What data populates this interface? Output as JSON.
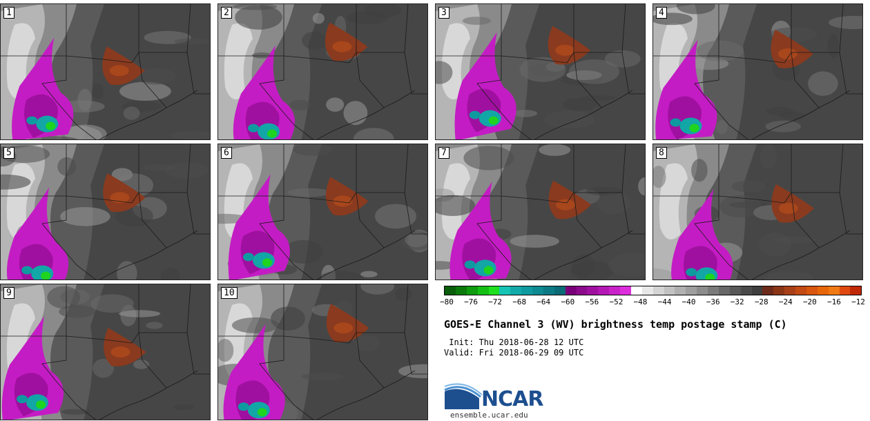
{
  "panels": [
    {
      "label": "1",
      "variant": 0
    },
    {
      "label": "2",
      "variant": 1
    },
    {
      "label": "3",
      "variant": 2
    },
    {
      "label": "4",
      "variant": 3
    },
    {
      "label": "5",
      "variant": 4
    },
    {
      "label": "6",
      "variant": 5
    },
    {
      "label": "7",
      "variant": 6
    },
    {
      "label": "8",
      "variant": 7
    },
    {
      "label": "9",
      "variant": 8
    },
    {
      "label": "10",
      "variant": 9
    }
  ],
  "colorbar": {
    "colors": [
      "#0a5d0a",
      "#0b7a0b",
      "#0e9b0e",
      "#14bf14",
      "#1fe01f",
      "#15c4b4",
      "#12aaa8",
      "#0f9aa0",
      "#0d8a92",
      "#0c7a84",
      "#0a6b76",
      "#7a007a",
      "#8c0a8c",
      "#a010a0",
      "#b418b4",
      "#c822c8",
      "#dc2edc",
      "#ffffff",
      "#e8e8e8",
      "#d4d4d4",
      "#c2c2c2",
      "#b0b0b0",
      "#9e9e9e",
      "#8c8c8c",
      "#7a7a7a",
      "#686868",
      "#585858",
      "#4a4a4a",
      "#3e3e3e",
      "#6b2a1a",
      "#8a3515",
      "#a84018",
      "#c24a14",
      "#d8560e",
      "#e8660a",
      "#f07a14",
      "#e04a10",
      "#c02808"
    ],
    "ticks": [
      "−80",
      "−76",
      "−72",
      "−68",
      "−64",
      "−60",
      "−56",
      "−52",
      "−48",
      "−44",
      "−40",
      "−36",
      "−32",
      "−28",
      "−24",
      "−20",
      "−16",
      "−12"
    ]
  },
  "title": "GOES-E Channel 3 (WV) brightness temp postage stamp (C)",
  "init": " Init: Thu 2018-06-28 12 UTC",
  "valid": "Valid: Fri 2018-06-29 09 UTC",
  "logo_text": "NCAR",
  "url": "ensemble.ucar.edu"
}
